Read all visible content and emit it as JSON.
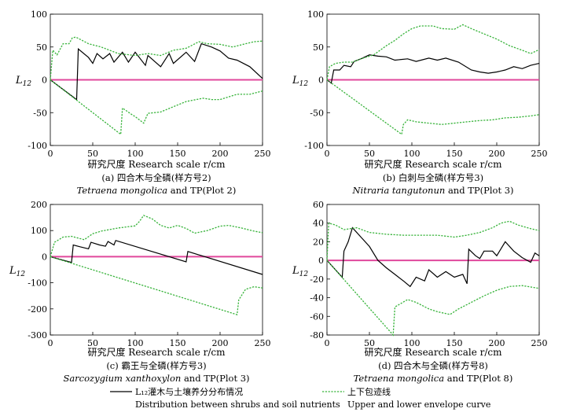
{
  "legend": {
    "observed_label": "L₁₂灌木与土壤养分分布情况",
    "observed_label_en": "Distribution between shrubs and soil nutrients",
    "envelope_label": "上下包迹线",
    "envelope_label_en": "Upper and lower envelope curve",
    "observed_color": "#000000",
    "envelope_color": "#37b33a",
    "zero_color": "#e0489c"
  },
  "chart_data": [
    {
      "type": "line",
      "id": "a",
      "ylabel": "L12",
      "xlabel": "研究尺度 Research scale r/cm",
      "caption_cn": "(a) 四合木与全磷(样方号2)",
      "caption_species": "Tetraena mongolica",
      "caption_en": "and TP(Plot 2)",
      "xlim": [
        0,
        250
      ],
      "ylim": [
        -100,
        100
      ],
      "xticks": [
        0,
        50,
        100,
        150,
        200,
        250
      ],
      "yticks": [
        -100,
        -50,
        0,
        50,
        100
      ],
      "series": [
        {
          "name": "observed",
          "points": [
            [
              0,
              0
            ],
            [
              31,
              -30
            ],
            [
              33,
              47
            ],
            [
              45,
              34
            ],
            [
              50,
              25
            ],
            [
              55,
              40
            ],
            [
              62,
              32
            ],
            [
              70,
              40
            ],
            [
              75,
              27
            ],
            [
              85,
              42
            ],
            [
              92,
              27
            ],
            [
              100,
              42
            ],
            [
              112,
              22
            ],
            [
              115,
              37
            ],
            [
              130,
              20
            ],
            [
              140,
              40
            ],
            [
              145,
              25
            ],
            [
              160,
              42
            ],
            [
              170,
              28
            ],
            [
              178,
              55
            ],
            [
              190,
              50
            ],
            [
              200,
              44
            ],
            [
              210,
              33
            ],
            [
              220,
              30
            ],
            [
              235,
              20
            ],
            [
              250,
              2
            ]
          ]
        },
        {
          "name": "upper envelope",
          "points": [
            [
              0,
              0
            ],
            [
              3,
              45
            ],
            [
              8,
              38
            ],
            [
              15,
              55
            ],
            [
              22,
              55
            ],
            [
              26,
              64
            ],
            [
              30,
              65
            ],
            [
              45,
              55
            ],
            [
              60,
              50
            ],
            [
              80,
              40
            ],
            [
              100,
              37
            ],
            [
              115,
              40
            ],
            [
              130,
              37
            ],
            [
              145,
              45
            ],
            [
              160,
              48
            ],
            [
              175,
              58
            ],
            [
              185,
              55
            ],
            [
              200,
              54
            ],
            [
              215,
              50
            ],
            [
              230,
              55
            ],
            [
              240,
              58
            ],
            [
              250,
              59
            ]
          ]
        },
        {
          "name": "lower envelope",
          "points": [
            [
              0,
              0
            ],
            [
              83,
              -83
            ],
            [
              85,
              -43
            ],
            [
              95,
              -52
            ],
            [
              100,
              -56
            ],
            [
              106,
              -62
            ],
            [
              110,
              -66
            ],
            [
              115,
              -51
            ],
            [
              130,
              -49
            ],
            [
              145,
              -41
            ],
            [
              160,
              -33
            ],
            [
              180,
              -28
            ],
            [
              190,
              -30
            ],
            [
              200,
              -30
            ],
            [
              220,
              -22
            ],
            [
              235,
              -22
            ],
            [
              250,
              -17
            ]
          ]
        }
      ]
    },
    {
      "type": "line",
      "id": "b",
      "ylabel": "L12",
      "xlabel": "研究尺度 Research scale r/cm",
      "caption_cn": "(b) 白刺与全磷(样方号3)",
      "caption_species": "Nitraria tangutonun",
      "caption_en": "and TP(Plot 3)",
      "xlim": [
        0,
        250
      ],
      "ylim": [
        -100,
        100
      ],
      "xticks": [
        0,
        50,
        100,
        150,
        200,
        250
      ],
      "yticks": [
        -100,
        -50,
        0,
        50,
        100
      ],
      "series": [
        {
          "name": "observed",
          "points": [
            [
              0,
              0
            ],
            [
              5,
              -5
            ],
            [
              8,
              15
            ],
            [
              15,
              15
            ],
            [
              20,
              22
            ],
            [
              28,
              20
            ],
            [
              32,
              28
            ],
            [
              40,
              32
            ],
            [
              50,
              38
            ],
            [
              60,
              36
            ],
            [
              70,
              35
            ],
            [
              80,
              30
            ],
            [
              95,
              32
            ],
            [
              105,
              28
            ],
            [
              120,
              33
            ],
            [
              130,
              30
            ],
            [
              140,
              33
            ],
            [
              155,
              27
            ],
            [
              170,
              15
            ],
            [
              180,
              12
            ],
            [
              190,
              10
            ],
            [
              200,
              12
            ],
            [
              210,
              15
            ],
            [
              220,
              20
            ],
            [
              230,
              17
            ],
            [
              240,
              22
            ],
            [
              250,
              25
            ]
          ]
        },
        {
          "name": "upper envelope",
          "points": [
            [
              0,
              0
            ],
            [
              3,
              20
            ],
            [
              10,
              25
            ],
            [
              20,
              27
            ],
            [
              30,
              27
            ],
            [
              40,
              32
            ],
            [
              55,
              38
            ],
            [
              70,
              52
            ],
            [
              80,
              60
            ],
            [
              90,
              70
            ],
            [
              100,
              78
            ],
            [
              110,
              82
            ],
            [
              125,
              82
            ],
            [
              135,
              78
            ],
            [
              150,
              77
            ],
            [
              160,
              84
            ],
            [
              170,
              78
            ],
            [
              185,
              70
            ],
            [
              200,
              62
            ],
            [
              215,
              52
            ],
            [
              230,
              45
            ],
            [
              240,
              40
            ],
            [
              250,
              46
            ]
          ]
        },
        {
          "name": "lower envelope",
          "points": [
            [
              0,
              0
            ],
            [
              88,
              -83
            ],
            [
              90,
              -68
            ],
            [
              95,
              -61
            ],
            [
              105,
              -64
            ],
            [
              120,
              -66
            ],
            [
              135,
              -68
            ],
            [
              150,
              -66
            ],
            [
              165,
              -64
            ],
            [
              180,
              -62
            ],
            [
              195,
              -61
            ],
            [
              210,
              -58
            ],
            [
              225,
              -57
            ],
            [
              240,
              -55
            ],
            [
              250,
              -53
            ]
          ]
        }
      ]
    },
    {
      "type": "line",
      "id": "c",
      "ylabel": "L12",
      "xlabel": "研究尺度 Research scale r/cm",
      "caption_cn": "(c) 霸王与全磷(样方号3)",
      "caption_species": "Sarcozygium xanthoxylon",
      "caption_en": "and TP(Plot 3)",
      "xlim": [
        0,
        250
      ],
      "ylim": [
        -300,
        200
      ],
      "xticks": [
        0,
        50,
        100,
        150,
        200,
        250
      ],
      "yticks": [
        -300,
        -200,
        -100,
        0,
        100,
        200
      ],
      "series": [
        {
          "name": "observed",
          "points": [
            [
              0,
              0
            ],
            [
              25,
              -22
            ],
            [
              27,
              45
            ],
            [
              35,
              38
            ],
            [
              45,
              30
            ],
            [
              48,
              55
            ],
            [
              58,
              45
            ],
            [
              65,
              40
            ],
            [
              68,
              58
            ],
            [
              75,
              45
            ],
            [
              77,
              62
            ],
            [
              160,
              -20
            ],
            [
              162,
              20
            ],
            [
              250,
              -68
            ]
          ]
        },
        {
          "name": "upper envelope",
          "points": [
            [
              0,
              0
            ],
            [
              5,
              55
            ],
            [
              15,
              75
            ],
            [
              25,
              78
            ],
            [
              40,
              65
            ],
            [
              50,
              88
            ],
            [
              60,
              98
            ],
            [
              80,
              110
            ],
            [
              100,
              118
            ],
            [
              105,
              135
            ],
            [
              110,
              158
            ],
            [
              120,
              145
            ],
            [
              130,
              120
            ],
            [
              140,
              110
            ],
            [
              150,
              120
            ],
            [
              160,
              108
            ],
            [
              170,
              90
            ],
            [
              185,
              100
            ],
            [
              200,
              117
            ],
            [
              210,
              120
            ],
            [
              225,
              110
            ],
            [
              240,
              98
            ],
            [
              250,
              92
            ]
          ]
        },
        {
          "name": "lower envelope",
          "points": [
            [
              0,
              0
            ],
            [
              220,
              -222
            ],
            [
              222,
              -165
            ],
            [
              230,
              -125
            ],
            [
              240,
              -115
            ],
            [
              250,
              -120
            ]
          ]
        }
      ]
    },
    {
      "type": "line",
      "id": "d",
      "ylabel": "L12",
      "xlabel": "研究尺度 Research scale r/cm",
      "caption_cn": "(d) 四合木与全磷(样方号8)",
      "caption_species": "Tetraena mongolica",
      "caption_en": "and TP(Plot 8)",
      "xlim": [
        0,
        250
      ],
      "ylim": [
        -80,
        60
      ],
      "xticks": [
        0,
        50,
        100,
        150,
        200,
        250
      ],
      "yticks": [
        -80,
        -60,
        -40,
        -20,
        0,
        20,
        40,
        60
      ],
      "series": [
        {
          "name": "observed",
          "points": [
            [
              0,
              0
            ],
            [
              18,
              -18
            ],
            [
              20,
              10
            ],
            [
              25,
              20
            ],
            [
              30,
              35
            ],
            [
              40,
              25
            ],
            [
              50,
              15
            ],
            [
              60,
              0
            ],
            [
              70,
              -8
            ],
            [
              80,
              -15
            ],
            [
              90,
              -22
            ],
            [
              98,
              -28
            ],
            [
              105,
              -18
            ],
            [
              115,
              -22
            ],
            [
              120,
              -10
            ],
            [
              130,
              -18
            ],
            [
              140,
              -12
            ],
            [
              150,
              -18
            ],
            [
              160,
              -15
            ],
            [
              165,
              -25
            ],
            [
              167,
              12
            ],
            [
              175,
              5
            ],
            [
              180,
              2
            ],
            [
              185,
              10
            ],
            [
              195,
              10
            ],
            [
              200,
              5
            ],
            [
              210,
              20
            ],
            [
              220,
              10
            ],
            [
              230,
              3
            ],
            [
              240,
              -2
            ],
            [
              245,
              8
            ],
            [
              250,
              5
            ]
          ]
        },
        {
          "name": "upper envelope",
          "points": [
            [
              0,
              0
            ],
            [
              2,
              40
            ],
            [
              10,
              38
            ],
            [
              20,
              33
            ],
            [
              35,
              35
            ],
            [
              50,
              30
            ],
            [
              70,
              28
            ],
            [
              90,
              27
            ],
            [
              110,
              27
            ],
            [
              130,
              27
            ],
            [
              150,
              25
            ],
            [
              165,
              27
            ],
            [
              180,
              30
            ],
            [
              195,
              35
            ],
            [
              205,
              40
            ],
            [
              215,
              42
            ],
            [
              225,
              38
            ],
            [
              240,
              34
            ],
            [
              250,
              32
            ]
          ]
        },
        {
          "name": "lower envelope",
          "points": [
            [
              0,
              0
            ],
            [
              78,
              -80
            ],
            [
              80,
              -50
            ],
            [
              95,
              -42
            ],
            [
              105,
              -45
            ],
            [
              120,
              -52
            ],
            [
              130,
              -55
            ],
            [
              145,
              -58
            ],
            [
              155,
              -52
            ],
            [
              170,
              -45
            ],
            [
              185,
              -38
            ],
            [
              200,
              -32
            ],
            [
              215,
              -28
            ],
            [
              230,
              -27
            ],
            [
              250,
              -30
            ]
          ]
        }
      ]
    }
  ]
}
